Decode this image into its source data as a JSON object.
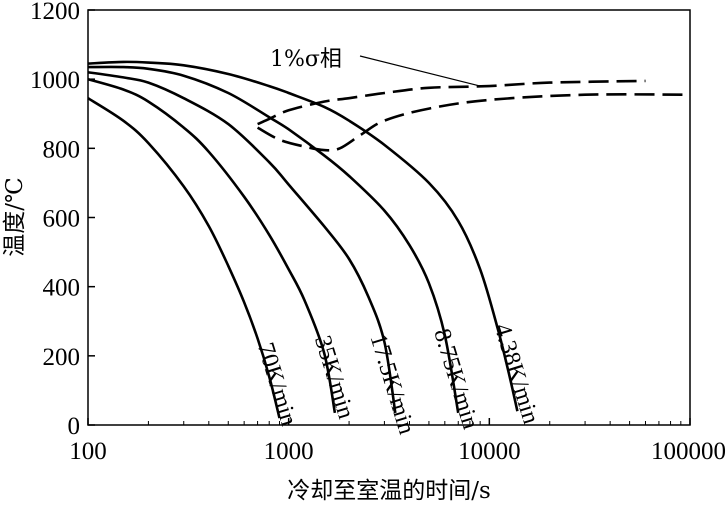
{
  "chart_data": {
    "type": "line",
    "xscale": "log",
    "xlim": [
      100,
      100000
    ],
    "ylim": [
      0,
      1200
    ],
    "xticks": [
      100,
      1000,
      10000,
      100000
    ],
    "xtick_labels": [
      "100",
      "1000",
      "10000",
      "100000"
    ],
    "yticks": [
      0,
      200,
      400,
      600,
      800,
      1000,
      1200
    ],
    "ytick_labels": [
      "0",
      "200",
      "400",
      "600",
      "800",
      "1000",
      "1200"
    ],
    "xlabel": "冷却至室温的时间/s",
    "ylabel": "温度/℃",
    "grid": false,
    "series": [
      {
        "name": "70K/min",
        "style": "solid",
        "x": [
          100,
          150,
          200,
          300,
          400,
          500,
          600,
          700,
          800,
          900
        ],
        "y": [
          945,
          880,
          815,
          690,
          575,
          460,
          355,
          250,
          140,
          20
        ]
      },
      {
        "name": "35K/min",
        "style": "solid",
        "x": [
          100,
          150,
          200,
          300,
          400,
          600,
          800,
          1000,
          1200,
          1500,
          1700
        ],
        "y": [
          1000,
          970,
          935,
          860,
          790,
          660,
          550,
          450,
          360,
          210,
          35
        ]
      },
      {
        "name": "17.5K/min",
        "style": "solid",
        "x": [
          100,
          150,
          200,
          300,
          500,
          800,
          1000,
          1500,
          2000,
          2500,
          3000,
          3400
        ],
        "y": [
          1020,
          1005,
          990,
          945,
          870,
          760,
          695,
          575,
          480,
          370,
          240,
          35
        ]
      },
      {
        "name": "8.75K/min",
        "style": "solid",
        "x": [
          100,
          150,
          200,
          300,
          500,
          800,
          1000,
          1500,
          2000,
          3000,
          4000,
          5000,
          6000,
          7000
        ],
        "y": [
          1035,
          1035,
          1030,
          1010,
          960,
          890,
          855,
          780,
          720,
          620,
          520,
          410,
          260,
          35
        ]
      },
      {
        "name": "4.38K/min",
        "style": "solid",
        "x": [
          100,
          150,
          200,
          300,
          500,
          800,
          1000,
          1500,
          2000,
          3000,
          5000,
          7000,
          9000,
          11000,
          12500,
          13800
        ],
        "y": [
          1045,
          1050,
          1048,
          1040,
          1015,
          980,
          960,
          920,
          880,
          810,
          700,
          590,
          450,
          280,
          150,
          40
        ]
      },
      {
        "name": "1%σ相",
        "style": "dashed",
        "x": [
          700,
          800,
          1000,
          1500,
          2000,
          3000,
          5000,
          10000,
          20000,
          60000
        ],
        "y": [
          870,
          885,
          910,
          935,
          945,
          960,
          975,
          980,
          990,
          995
        ]
      },
      {
        "name": "1%σ相 (lower)",
        "style": "dashed",
        "x": [
          700,
          900,
          1200,
          1500,
          1800,
          2300,
          3000,
          5000,
          10000,
          30000,
          100000
        ],
        "y": [
          860,
          825,
          805,
          795,
          800,
          840,
          880,
          915,
          940,
          955,
          955
        ]
      }
    ],
    "curve_labels": [
      "70K/min",
      "35K/min",
      "17.5K/min",
      "8.75K/min",
      "4.38K/min"
    ],
    "annotation": {
      "text": "1%σ相",
      "target": {
        "x": 9000,
        "y": 980
      }
    }
  }
}
